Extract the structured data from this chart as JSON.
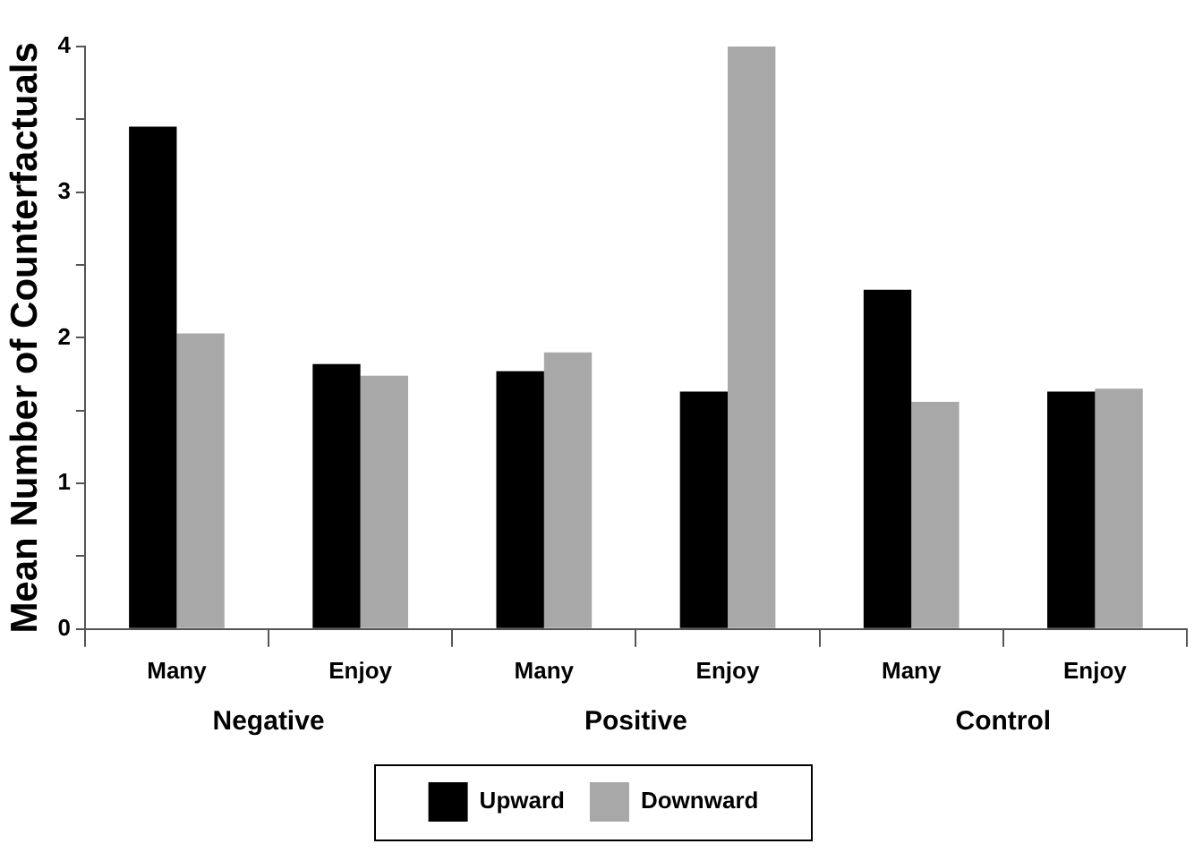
{
  "chart_data": {
    "type": "bar",
    "ylabel": "Mean Number of Counterfactuals",
    "categories": [
      "Many",
      "Enjoy",
      "Many",
      "Enjoy",
      "Many",
      "Enjoy"
    ],
    "annotations": [
      "Negative",
      "Positive",
      "Control"
    ],
    "series": [
      {
        "name": "Upward",
        "color": "#000000",
        "values": [
          3.45,
          1.82,
          1.77,
          1.63,
          2.33,
          1.63
        ]
      },
      {
        "name": "Downward",
        "color": "#a8a8a8",
        "values": [
          2.03,
          1.74,
          1.9,
          4.0,
          1.56,
          1.65
        ]
      }
    ],
    "ylim": [
      0,
      4
    ],
    "yticks": [
      0,
      {
        "value": 0.5,
        "label": null
      },
      1,
      {
        "value": 1.5,
        "label": null
      },
      2,
      {
        "value": 2.5,
        "label": null
      },
      3,
      {
        "value": 3.5,
        "label": null
      },
      4
    ],
    "grid": false,
    "legend": "bottom"
  }
}
